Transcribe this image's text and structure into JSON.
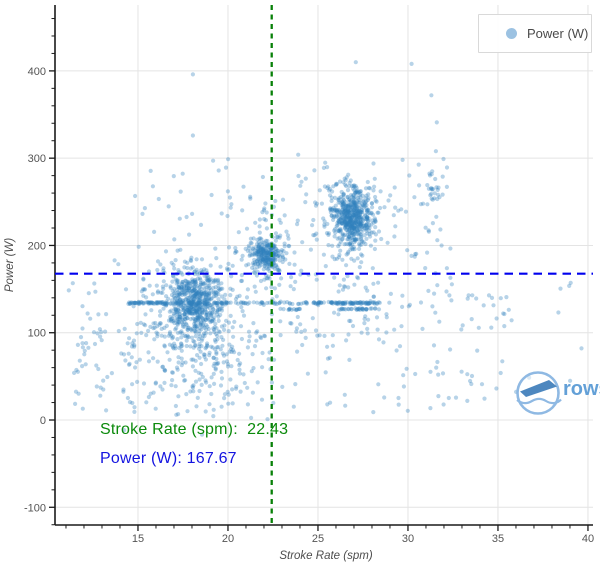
{
  "legend": {
    "label": "Power (W)",
    "marker_color": "#9cc2e2"
  },
  "annotations": {
    "stroke_rate": {
      "text": "Stroke Rate (spm):  22.43",
      "color": "#0b8a0b"
    },
    "power": {
      "text": "Power (W): 167.67",
      "color": "#1414e0"
    }
  },
  "watermark": {
    "text": "rows"
  },
  "chart_data": {
    "type": "scatter",
    "title": "",
    "series_name": "Power (W)",
    "xlabel": "Stroke Rate (spm)",
    "ylabel": "Power (W)",
    "xlim": [
      10.39,
      40.28
    ],
    "ylim": [
      -120.3,
      475.5
    ],
    "xticks": [
      15,
      20,
      25,
      30,
      35,
      40
    ],
    "yticks": [
      -100,
      0,
      100,
      200,
      300,
      400
    ],
    "x_minor_step": 1,
    "y_minor_step": 20,
    "grid": true,
    "legend_position": "top-right",
    "point": {
      "color": "#3182bd",
      "opacity": 0.35,
      "radius": 2.1
    },
    "reference": {
      "vline": {
        "x": 22.43,
        "color": "#088008",
        "dash": "5 4.5",
        "width": 2.3
      },
      "hline": {
        "y": 167.67,
        "color": "#0000ee",
        "dash": "8.5 6",
        "width": 2.2
      }
    },
    "clusters": [
      {
        "name": "low-rate-core",
        "n": 500,
        "cx": 18.1,
        "cy": 136,
        "sx": 0.8,
        "sy": 18
      },
      {
        "name": "low-rate-halo",
        "n": 280,
        "cx": 18.2,
        "cy": 118,
        "sx": 1.6,
        "sy": 40
      },
      {
        "name": "low-rate-tail",
        "n": 110,
        "cx": 18.6,
        "cy": 58,
        "sx": 2.0,
        "sy": 28
      },
      {
        "name": "mid-rate-core",
        "n": 230,
        "cx": 22.2,
        "cy": 190,
        "sx": 0.45,
        "sy": 8
      },
      {
        "name": "mid-rate-halo",
        "n": 70,
        "cx": 22.2,
        "cy": 183,
        "sx": 0.8,
        "sy": 20
      },
      {
        "name": "high-rate-core",
        "n": 450,
        "cx": 26.9,
        "cy": 234,
        "sx": 0.52,
        "sy": 15
      },
      {
        "name": "high-rate-halo",
        "n": 160,
        "cx": 26.85,
        "cy": 228,
        "sx": 1.05,
        "sy": 28
      },
      {
        "name": "mini-31spm",
        "n": 20,
        "cx": 31.35,
        "cy": 263,
        "sx": 0.2,
        "sy": 9
      }
    ],
    "bands": [
      {
        "y": 134,
        "jitter": 1.1,
        "segments": [
          {
            "x0": 14.45,
            "x1": 16.3,
            "n": 48
          },
          {
            "x0": 16.3,
            "x1": 25.6,
            "n": 95
          },
          {
            "x0": 25.7,
            "x1": 28.45,
            "n": 70
          }
        ]
      },
      {
        "y": 127,
        "jitter": 1.0,
        "segments": [
          {
            "x0": 22.8,
            "x1": 24.2,
            "n": 12
          },
          {
            "x0": 25.9,
            "x1": 28.6,
            "n": 30
          }
        ]
      }
    ],
    "sparse": [
      {
        "n": 200,
        "x0": 11.0,
        "x1": 35.5,
        "y0": 8,
        "y1": 165
      },
      {
        "n": 80,
        "x0": 13.5,
        "x1": 32.5,
        "y0": 165,
        "y1": 300
      },
      {
        "n": 40,
        "x0": 11.3,
        "x1": 15.6,
        "y0": 25,
        "y1": 105
      },
      {
        "n": 30,
        "x0": 29.0,
        "x1": 40.0,
        "y0": 20,
        "y1": 160
      },
      {
        "n": 18,
        "x0": 21.5,
        "x1": 23.5,
        "y0": 205,
        "y1": 268
      },
      {
        "n": 25,
        "x0": 23.5,
        "x1": 25.8,
        "y0": 60,
        "y1": 295
      },
      {
        "n": 30,
        "x0": 25.8,
        "x1": 28.5,
        "y0": 95,
        "y1": 188
      },
      {
        "n": 20,
        "x0": 29.0,
        "x1": 32.0,
        "y0": 180,
        "y1": 282
      }
    ],
    "notable_points": [
      [
        18.05,
        396
      ],
      [
        18.05,
        326
      ],
      [
        27.1,
        410
      ],
      [
        30.2,
        408
      ],
      [
        31.3,
        372
      ],
      [
        31.6,
        341
      ],
      [
        31.55,
        308
      ],
      [
        29.7,
        298
      ],
      [
        23.9,
        304
      ],
      [
        24.8,
        286
      ],
      [
        12.2,
        122
      ],
      [
        12.8,
        121
      ]
    ],
    "seed": 20431,
    "total_points_estimate": 2500
  }
}
